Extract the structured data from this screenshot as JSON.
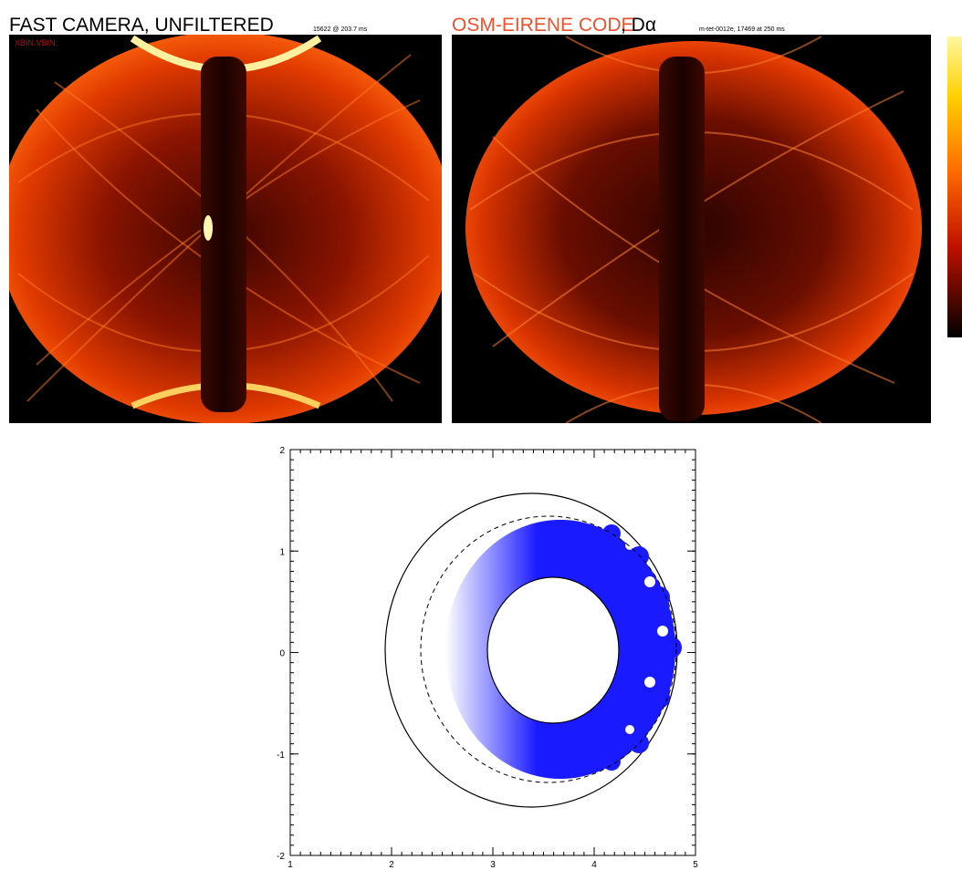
{
  "left_panel": {
    "title": "FAST CAMERA, UNFILTERED",
    "subtitle": "15622 @ 203.7 ms",
    "overlay_text": "XBIN.VBIN:"
  },
  "right_panel": {
    "title": "OSM-EIRENE CODE",
    "title_suffix": ", Dα",
    "subtitle": "m-tet-0012e, 17469 at 250 ms"
  },
  "plot": {
    "xlim": [
      1,
      5
    ],
    "ylim": [
      -2,
      2
    ],
    "xticks": [
      1,
      2,
      3,
      4,
      5
    ],
    "yticks": [
      -2,
      -1,
      0,
      1,
      2
    ]
  }
}
